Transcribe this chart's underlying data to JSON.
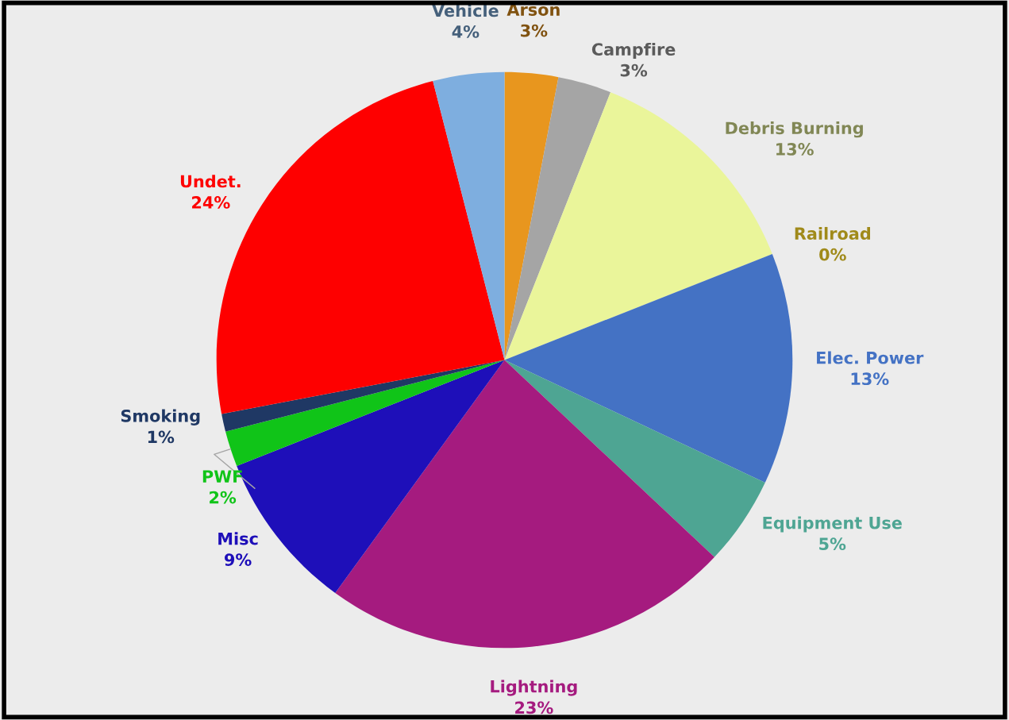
{
  "chart_data": {
    "type": "pie",
    "categories": [
      "Arson",
      "Campfire",
      "Debris Burning",
      "Railroad",
      "Elec. Power",
      "Equipment Use",
      "Lightning",
      "Misc",
      "PWF",
      "Smoking",
      "Undet.",
      "Vehicle"
    ],
    "values": [
      3,
      3,
      13,
      0,
      13,
      5,
      23,
      9,
      2,
      1,
      24,
      4
    ],
    "colors": [
      "#e8961e",
      "#a5a5a5",
      "#eaf59a",
      "#a08a1a",
      "#4472c4",
      "#4ea593",
      "#a51b7f",
      "#1e0fb9",
      "#10c418",
      "#1f3864",
      "#fe0000",
      "#7eaedf"
    ],
    "value_labels": [
      "3%",
      "3%",
      "13%",
      "0%",
      "13%",
      "5%",
      "23%",
      "9%",
      "2%",
      "1%",
      "24%",
      "4%"
    ]
  }
}
